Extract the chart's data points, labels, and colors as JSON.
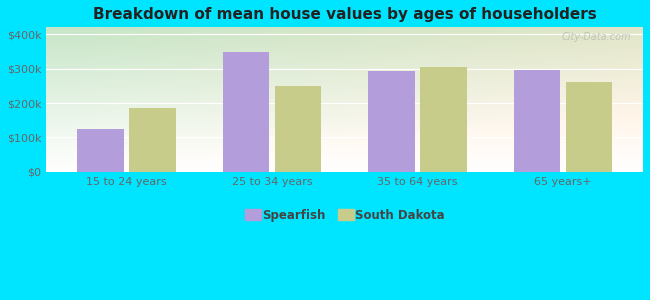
{
  "title": "Breakdown of mean house values by ages of householders",
  "categories": [
    "15 to 24 years",
    "25 to 34 years",
    "35 to 64 years",
    "65 years+"
  ],
  "spearfish_values": [
    125000,
    348000,
    292000,
    295000
  ],
  "south_dakota_values": [
    185000,
    250000,
    305000,
    260000
  ],
  "spearfish_color": "#b39ddb",
  "south_dakota_color": "#c8cc8a",
  "yticks": [
    0,
    100000,
    200000,
    300000,
    400000
  ],
  "ytick_labels": [
    "$0",
    "$100k",
    "$200k",
    "$300k",
    "$400k"
  ],
  "ylim": [
    0,
    420000
  ],
  "background_outer": "#00e5ff",
  "watermark": "City-Data.com",
  "legend_spearfish": "Spearfish",
  "legend_south_dakota": "South Dakota",
  "title_fontsize": 11,
  "label_fontsize": 8,
  "tick_fontsize": 8,
  "bar_width": 0.32,
  "bar_gap": 0.04
}
